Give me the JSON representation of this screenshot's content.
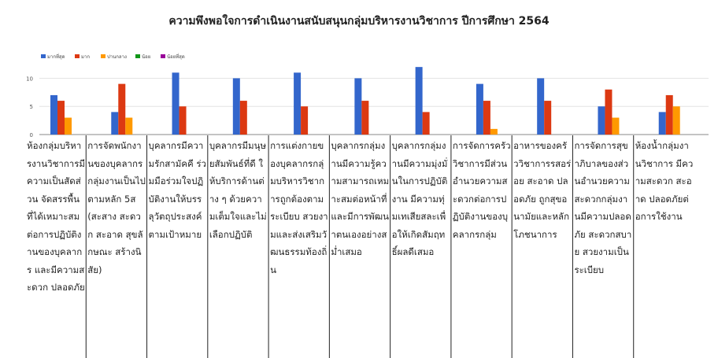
{
  "chart_data": {
    "type": "bar",
    "title": "ความพึงพอใจการดำเนินงานสนับสนุนกลุ่มบริหารงานวิชาการ ปีการศึกษา 2564",
    "xlabel": "",
    "ylabel": "",
    "ylim": [
      0,
      13
    ],
    "yticks": [
      0,
      5,
      10
    ],
    "grid": true,
    "legend_position": "top-left",
    "categories": [
      "ห้องกลุ่มบริหารงานวิชาการมีความเป็นสัดส่วน จัดสรรพื้นที่ได้เหมาะสมต่อการปฏิบัติงานของบุคลากร และมีความสะดวก ปลอดภัย",
      "การจัดพนักงานของบุคลากรกลุ่มงานเป็นไปตามหลัก 5ส (สะสาง สะดวก สะอาด สุขลักษณะ สร้างนิสัย)",
      "บุคลากรมีความรักสามัคคี ร่วมมือร่วมใจปฏิบัติงานให้บรรลุวัตถุประสงค์ตามเป้าหมาย",
      "บุคลากรมีมนุษยสัมพันธ์ที่ดี ให้บริการด้านต่าง ๆ ด้วยความเต็มใจและไม่เลือกปฏิบัติ",
      "การแต่งกายของบุคลากรกลุ่มบริหารวิชาการถูกต้องตามระเบียบ สวยงามและส่งเสริมวัฒนธรรมท้องถิ่น",
      "บุคลากรกลุ่มงานมีความรู้ความสามารถเหมาะสมต่อหน้าที่ และมีการพัฒนาตนเองอย่างสม่ำเสมอ",
      "บุคลากรกลุ่มงานมีความมุ่งมั่นในการปฏิบัติงาน มีความทุ่มเทเสียสละเพื่อให้เกิดสัมฤทธิ์ผลดีเสมอ",
      "การจัดการครัววิชาการมีส่วนอำนวยความสะดวกต่อการปฏิบัติงานของบุคลากรกลุ่ม",
      "อาหารของครัววิชาการรสอร่อย สะอาด ปลอดภัย ถูกสุขอนามัยและหลักโภชนาการ",
      "การจัดการสุขาภิบาลของส่วนอำนวยความสะดวกกลุ่มงานมีความปลอดภัย สะดวกสบาย สวยงามเป็นระเบียบ",
      "ห้องน้ำกลุ่มงานวิชาการ มีความสะดวก สะอาด ปลอดภัยต่อการใช้งาน"
    ],
    "series": [
      {
        "name": "มากที่สุด",
        "color": "#3366cc",
        "values": [
          7,
          4,
          11,
          10,
          11,
          10,
          12,
          9,
          10,
          5,
          4
        ]
      },
      {
        "name": "มาก",
        "color": "#dc3912",
        "values": [
          6,
          9,
          5,
          6,
          5,
          6,
          4,
          6,
          6,
          8,
          7
        ]
      },
      {
        "name": "ปานกลาง",
        "color": "#ff9900",
        "values": [
          3,
          3,
          0,
          0,
          0,
          0,
          0,
          1,
          0,
          3,
          5
        ]
      },
      {
        "name": "น้อย",
        "color": "#109618",
        "values": [
          0,
          0,
          0,
          0,
          0,
          0,
          0,
          0,
          0,
          0,
          0
        ]
      },
      {
        "name": "น้อยที่สุด",
        "color": "#990099",
        "values": [
          0,
          0,
          0,
          0,
          0,
          0,
          0,
          0,
          0,
          0,
          0
        ]
      }
    ]
  }
}
